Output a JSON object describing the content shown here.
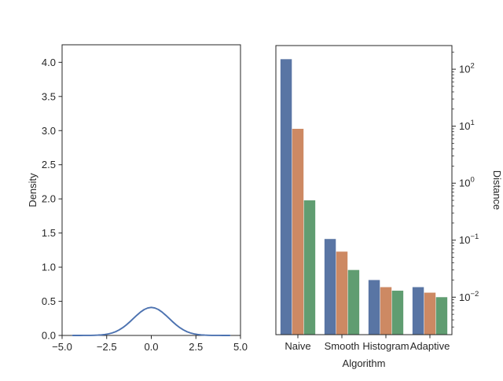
{
  "figure": {
    "background": "#ffffff",
    "text_color": "#262626"
  },
  "chart_data": [
    {
      "type": "line",
      "title": "",
      "xlabel": "",
      "ylabel": "Density",
      "xlim": [
        -5.0,
        5.0
      ],
      "ylim": [
        0,
        4.257
      ],
      "grid": false,
      "legend": "none",
      "xticks": {
        "values": [
          -5.0,
          -2.5,
          0.0,
          2.5,
          5.0
        ],
        "labels": [
          "−5.0",
          "−2.5",
          "0.0",
          "2.5",
          "5.0"
        ]
      },
      "yticks": {
        "values": [
          0,
          0.5,
          1.0,
          1.5,
          2.0,
          2.5,
          3.0,
          3.5,
          4.0
        ],
        "labels": [
          "0.0",
          "0.5",
          "1.0",
          "1.5",
          "2.0",
          "2.5",
          "3.0",
          "3.5",
          "4.0"
        ]
      },
      "series": [
        {
          "name": "kde-curve",
          "color": "#4c72b0",
          "linewidth": 1.9,
          "x": [
            -4.4,
            -4.2,
            -4.0,
            -3.8,
            -3.6,
            -3.4,
            -3.2,
            -3.0,
            -2.8,
            -2.6,
            -2.4,
            -2.2,
            -2.0,
            -1.8,
            -1.6,
            -1.4,
            -1.2,
            -1.0,
            -0.8,
            -0.6,
            -0.4,
            -0.2,
            0.0,
            0.2,
            0.4,
            0.6,
            0.8,
            1.0,
            1.2,
            1.4,
            1.6,
            1.8,
            2.0,
            2.2,
            2.4,
            2.6,
            2.8,
            3.0,
            3.2,
            3.4,
            3.6,
            3.8,
            4.0,
            4.2,
            4.4
          ],
          "y": [
            0.0,
            0.0001,
            0.0001,
            0.0003,
            0.0006,
            0.0012,
            0.0024,
            0.0045,
            0.008,
            0.014,
            0.023,
            0.036,
            0.055,
            0.081,
            0.114,
            0.154,
            0.2,
            0.249,
            0.298,
            0.343,
            0.379,
            0.402,
            0.41,
            0.402,
            0.379,
            0.343,
            0.298,
            0.249,
            0.2,
            0.154,
            0.114,
            0.081,
            0.055,
            0.036,
            0.023,
            0.014,
            0.008,
            0.0045,
            0.0024,
            0.0012,
            0.0006,
            0.0003,
            0.0001,
            0.0001,
            0.0
          ]
        }
      ]
    },
    {
      "type": "bar",
      "title": "",
      "xlabel": "Algorithm",
      "ylabel": "Distance",
      "yscale": "log",
      "ylim": [
        0.0022,
        260
      ],
      "grid": false,
      "legend": "none",
      "categories": [
        "Naive",
        "Smooth",
        "Histogram",
        "Adaptive"
      ],
      "ytick_exponents": [
        2,
        1,
        0,
        -1,
        -2
      ],
      "ytick_exponent_labels": [
        "2",
        "1",
        "0",
        "−1",
        "−2"
      ],
      "series": [
        {
          "name": "series-blue",
          "color": "#5975a4",
          "values": [
            150,
            0.105,
            0.02,
            0.015
          ]
        },
        {
          "name": "series-orange",
          "color": "#cd8963",
          "values": [
            9,
            0.063,
            0.015,
            0.012
          ]
        },
        {
          "name": "series-green",
          "color": "#609d71",
          "values": [
            0.5,
            0.03,
            0.013,
            0.01
          ]
        }
      ]
    }
  ]
}
